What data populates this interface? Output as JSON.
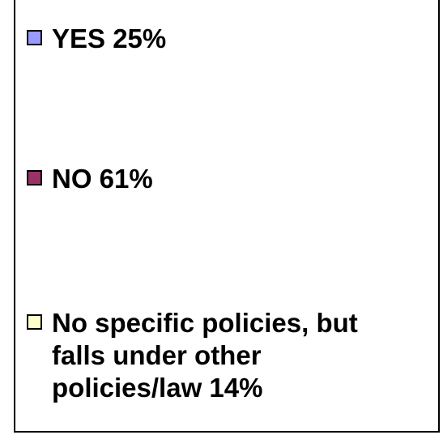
{
  "chart_data": {
    "type": "pie",
    "title": "",
    "categories": [
      "YES",
      "NO",
      "No specific policies, but falls under other policies/law"
    ],
    "values": [
      25,
      61,
      14
    ],
    "unit": "%",
    "legend": {
      "placement": "right",
      "entries": [
        {
          "label": "YES 25%",
          "color": "#9999ff"
        },
        {
          "label": "NO 61%",
          "color": "#993366"
        },
        {
          "label": "No specific policies, but\nfalls under other\npolicies/law 14%",
          "color": "#ffffcc"
        }
      ]
    }
  }
}
